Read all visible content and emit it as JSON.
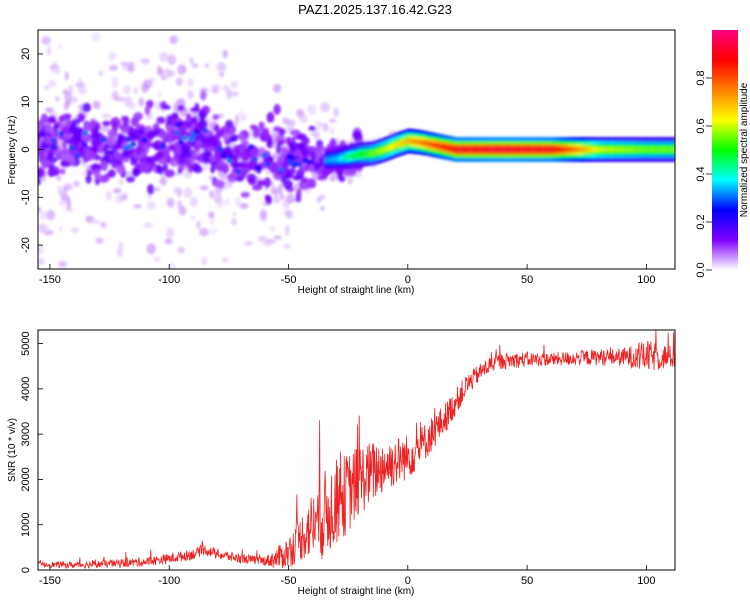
{
  "title": "PAZ1.2025.137.16.42.G23",
  "chart_data": [
    {
      "type": "heatmap",
      "xlabel": "Height of straight line (km)",
      "ylabel": "Frequency (Hz)",
      "xlim": [
        -155,
        112
      ],
      "ylim": [
        -25,
        25
      ],
      "xticks": [
        -150,
        -100,
        -50,
        0,
        50,
        100
      ],
      "yticks": [
        -20,
        -10,
        0,
        10,
        20
      ],
      "colorbar": {
        "label": "Normalized spectral amplitude",
        "ticks": [
          "0.0",
          "0.2",
          "0.4",
          "0.6",
          "0.8"
        ],
        "tick_values": [
          0.0,
          0.2,
          0.4,
          0.6,
          0.8
        ],
        "range": [
          0,
          1
        ],
        "colors": [
          "#ffffff",
          "#8000ff",
          "#0000ff",
          "#00ffff",
          "#00ff00",
          "#ffff00",
          "#ff8000",
          "#ff0000",
          "#ff0080"
        ]
      },
      "ridge": [
        {
          "x": -150,
          "y": 0.5,
          "amp": 0.15
        },
        {
          "x": -140,
          "y": 1.5,
          "amp": 0.2
        },
        {
          "x": -130,
          "y": 0.0,
          "amp": 0.18
        },
        {
          "x": -120,
          "y": 1.0,
          "amp": 0.2
        },
        {
          "x": -110,
          "y": 0.5,
          "amp": 0.2
        },
        {
          "x": -100,
          "y": 2.0,
          "amp": 0.25
        },
        {
          "x": -95,
          "y": 3.0,
          "amp": 0.3
        },
        {
          "x": -90,
          "y": 3.0,
          "amp": 0.3
        },
        {
          "x": -85,
          "y": 2.0,
          "amp": 0.25
        },
        {
          "x": -80,
          "y": 0.0,
          "amp": 0.2
        },
        {
          "x": -70,
          "y": -1.5,
          "amp": 0.25
        },
        {
          "x": -60,
          "y": -2.0,
          "amp": 0.25
        },
        {
          "x": -50,
          "y": -2.5,
          "amp": 0.25
        },
        {
          "x": -40,
          "y": -2.5,
          "amp": 0.3
        },
        {
          "x": -30,
          "y": -2.0,
          "amp": 0.35
        },
        {
          "x": -25,
          "y": -1.5,
          "amp": 0.45
        },
        {
          "x": -20,
          "y": -1.0,
          "amp": 0.5
        },
        {
          "x": -15,
          "y": -0.8,
          "amp": 0.55
        },
        {
          "x": -10,
          "y": 0.0,
          "amp": 0.6
        },
        {
          "x": -5,
          "y": 1.0,
          "amp": 0.65
        },
        {
          "x": 0,
          "y": 1.8,
          "amp": 0.7
        },
        {
          "x": 5,
          "y": 1.5,
          "amp": 0.75
        },
        {
          "x": 10,
          "y": 1.0,
          "amp": 0.8
        },
        {
          "x": 15,
          "y": 0.5,
          "amp": 0.85
        },
        {
          "x": 20,
          "y": 0.0,
          "amp": 0.9
        },
        {
          "x": 40,
          "y": 0.0,
          "amp": 0.92
        },
        {
          "x": 60,
          "y": 0.0,
          "amp": 0.9
        },
        {
          "x": 80,
          "y": 0.0,
          "amp": 0.6
        },
        {
          "x": 100,
          "y": 0.0,
          "amp": 0.55
        },
        {
          "x": 110,
          "y": 0.0,
          "amp": 0.55
        }
      ]
    },
    {
      "type": "line",
      "xlabel": "Height of straight line (km)",
      "ylabel": "SNR (10 * v/v)",
      "xlim": [
        -155,
        112
      ],
      "ylim": [
        0,
        5300
      ],
      "xticks": [
        -150,
        -100,
        -50,
        0,
        50,
        100
      ],
      "yticks": [
        0,
        1000,
        2000,
        3000,
        4000,
        5000
      ],
      "series_color": "#ee2222",
      "envelope": [
        {
          "x": -155,
          "y": 120
        },
        {
          "x": -140,
          "y": 110
        },
        {
          "x": -120,
          "y": 150
        },
        {
          "x": -110,
          "y": 180
        },
        {
          "x": -100,
          "y": 250
        },
        {
          "x": -90,
          "y": 350
        },
        {
          "x": -85,
          "y": 450
        },
        {
          "x": -80,
          "y": 350
        },
        {
          "x": -70,
          "y": 250
        },
        {
          "x": -60,
          "y": 200
        },
        {
          "x": -55,
          "y": 250
        },
        {
          "x": -50,
          "y": 400
        },
        {
          "x": -45,
          "y": 700
        },
        {
          "x": -40,
          "y": 1000
        },
        {
          "x": -35,
          "y": 1200
        },
        {
          "x": -30,
          "y": 1500
        },
        {
          "x": -25,
          "y": 1700
        },
        {
          "x": -20,
          "y": 2000
        },
        {
          "x": -10,
          "y": 2300
        },
        {
          "x": 0,
          "y": 2500
        },
        {
          "x": 5,
          "y": 2700
        },
        {
          "x": 10,
          "y": 3000
        },
        {
          "x": 15,
          "y": 3300
        },
        {
          "x": 20,
          "y": 3700
        },
        {
          "x": 25,
          "y": 4100
        },
        {
          "x": 30,
          "y": 4350
        },
        {
          "x": 35,
          "y": 4550
        },
        {
          "x": 40,
          "y": 4620
        },
        {
          "x": 50,
          "y": 4650
        },
        {
          "x": 60,
          "y": 4650
        },
        {
          "x": 70,
          "y": 4680
        },
        {
          "x": 80,
          "y": 4700
        },
        {
          "x": 90,
          "y": 4700
        },
        {
          "x": 100,
          "y": 4720
        },
        {
          "x": 112,
          "y": 4700
        }
      ],
      "noise": [
        {
          "x": -155,
          "amp": 60
        },
        {
          "x": -90,
          "amp": 120
        },
        {
          "x": -60,
          "amp": 100
        },
        {
          "x": -45,
          "amp": 500
        },
        {
          "x": -35,
          "amp": 1000
        },
        {
          "x": -25,
          "amp": 900
        },
        {
          "x": -10,
          "amp": 600
        },
        {
          "x": 10,
          "amp": 400
        },
        {
          "x": 30,
          "amp": 200
        },
        {
          "x": 60,
          "amp": 150
        },
        {
          "x": 90,
          "amp": 200
        },
        {
          "x": 100,
          "amp": 350
        },
        {
          "x": 112,
          "amp": 250
        }
      ]
    }
  ]
}
